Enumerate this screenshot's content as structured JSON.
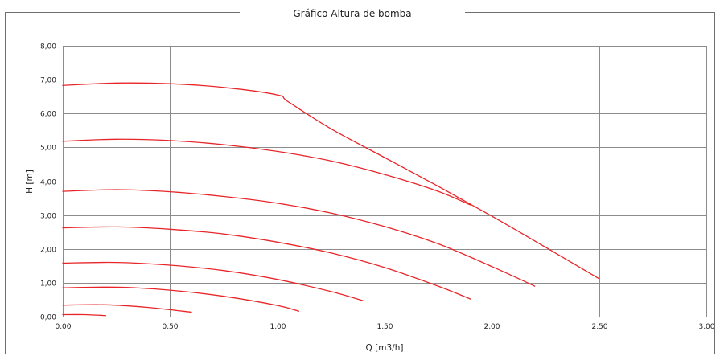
{
  "chart_data": {
    "type": "line",
    "title": "Gráfico Altura de bomba",
    "xlabel": "Q [m3/h]",
    "ylabel": "H [m]",
    "xlim": [
      0,
      3
    ],
    "ylim": [
      0,
      8
    ],
    "x_ticks": [
      "0,00",
      "0,50",
      "1,00",
      "1,50",
      "2,00",
      "2,50",
      "3,00"
    ],
    "y_ticks": [
      "0,00",
      "1,00",
      "2,00",
      "3,00",
      "4,00",
      "5,00",
      "6,00",
      "7,00",
      "8,00"
    ],
    "grid": true,
    "legend": "none",
    "line_color": "#e8262a",
    "series": [
      {
        "x": [
          0,
          0.25,
          0.5,
          0.75,
          1.0,
          1.05,
          1.25,
          1.5,
          1.75,
          2.0,
          2.25,
          2.5
        ],
        "y": [
          6.83,
          6.9,
          6.88,
          6.77,
          6.55,
          6.35,
          5.55,
          4.7,
          3.85,
          2.97,
          2.05,
          1.12
        ]
      },
      {
        "x": [
          0,
          0.25,
          0.5,
          0.75,
          1.0,
          1.25,
          1.5,
          1.75,
          1.9
        ],
        "y": [
          5.18,
          5.24,
          5.2,
          5.08,
          4.88,
          4.6,
          4.2,
          3.7,
          3.3
        ]
      },
      {
        "x": [
          0,
          0.25,
          0.5,
          0.75,
          1.0,
          1.25,
          1.5,
          1.75,
          2.0,
          2.2
        ],
        "y": [
          3.7,
          3.75,
          3.69,
          3.55,
          3.35,
          3.06,
          2.66,
          2.15,
          1.48,
          0.9
        ]
      },
      {
        "x": [
          0,
          0.25,
          0.5,
          0.75,
          1.0,
          1.25,
          1.5,
          1.75,
          1.9
        ],
        "y": [
          2.62,
          2.65,
          2.58,
          2.44,
          2.2,
          1.88,
          1.45,
          0.9,
          0.52
        ]
      },
      {
        "x": [
          0,
          0.25,
          0.5,
          0.75,
          1.0,
          1.25,
          1.4
        ],
        "y": [
          1.58,
          1.6,
          1.52,
          1.36,
          1.1,
          0.74,
          0.47
        ]
      },
      {
        "x": [
          0,
          0.25,
          0.5,
          0.75,
          1.0,
          1.1
        ],
        "y": [
          0.85,
          0.87,
          0.78,
          0.6,
          0.33,
          0.16
        ]
      },
      {
        "x": [
          0,
          0.2,
          0.4,
          0.6
        ],
        "y": [
          0.34,
          0.35,
          0.27,
          0.13
        ]
      },
      {
        "x": [
          0,
          0.1,
          0.2
        ],
        "y": [
          0.06,
          0.06,
          0.03
        ]
      }
    ]
  }
}
